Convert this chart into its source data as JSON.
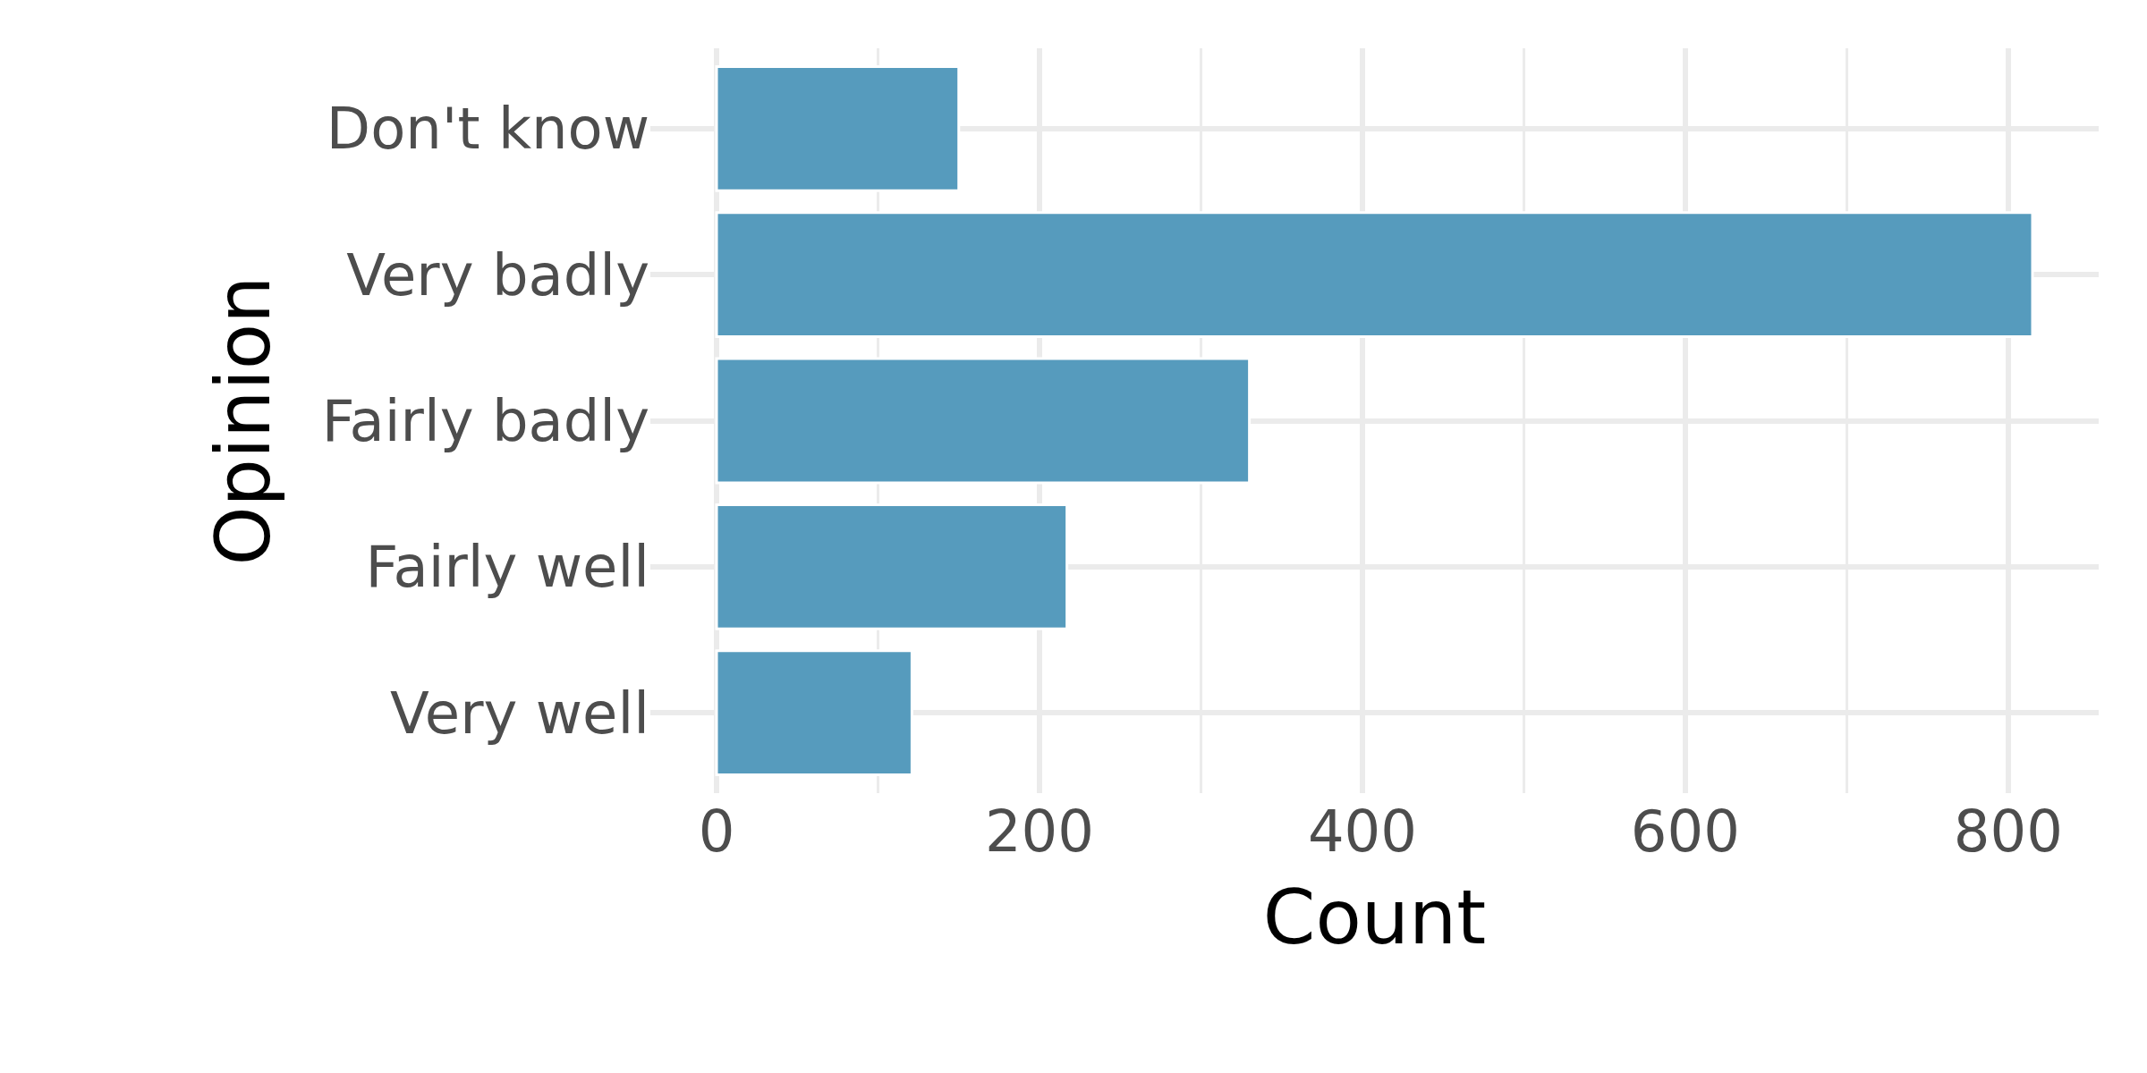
{
  "chart_data": {
    "type": "bar",
    "orientation": "horizontal",
    "xlabel": "Count",
    "ylabel": "Opinion",
    "categories": [
      "Don't know",
      "Very badly",
      "Fairly badly",
      "Fairly well",
      "Very well"
    ],
    "values": [
      150,
      815,
      330,
      217,
      121
    ],
    "color": "#569bbd",
    "xlim": [
      -41,
      856
    ],
    "xticks": [
      0,
      {
        "value": 100,
        "label": null
      },
      200,
      {
        "value": 300,
        "label": null
      },
      400,
      {
        "value": 500,
        "label": null
      },
      600,
      {
        "value": 700,
        "label": null
      },
      800
    ],
    "grid": true,
    "legend": false
  }
}
